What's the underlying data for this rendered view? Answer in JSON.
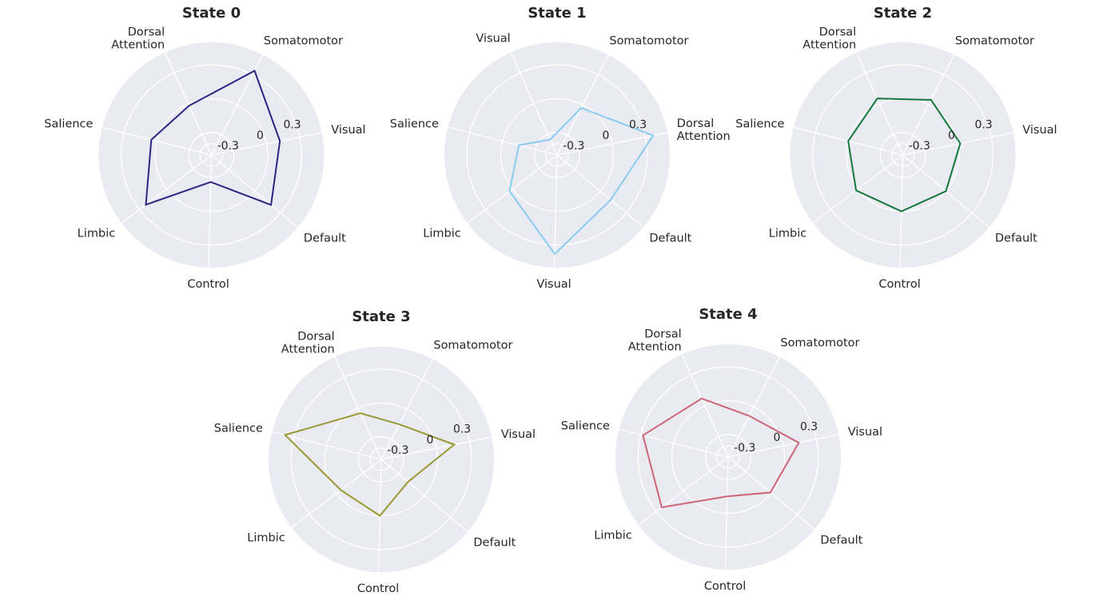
{
  "figure": {
    "background": "#ffffff",
    "axes_background": "#EAEAF2",
    "grid_color": "#ffffff",
    "text_color": "#262626"
  },
  "chart_data": [
    {
      "type": "radar",
      "title": "State 0",
      "categories": [
        "Visual",
        "Somatomotor",
        "Dorsal\nAttention",
        "Salience",
        "Limbic",
        "Control",
        "Default"
      ],
      "values": [
        0.12,
        0.34,
        -0.02,
        0.05,
        0.23,
        -0.26,
        0.19
      ],
      "color": "#2E2482",
      "rlim": [
        -0.5,
        0.5
      ],
      "rticks": [
        -0.3,
        0,
        0.3
      ],
      "rtick_labels": [
        "-0.3",
        "0",
        "0.3"
      ],
      "grid": true
    },
    {
      "type": "radar",
      "title": "State 1",
      "categories": [
        "Dorsal\nAttention",
        "Somatomotor",
        "Visual",
        "Salience",
        "Limbic",
        "Visual",
        "Default"
      ],
      "values": [
        0.37,
        -0.03,
        -0.35,
        -0.15,
        0.03,
        0.38,
        0.12
      ],
      "color": "#89CCEE",
      "rlim": [
        -0.5,
        0.5
      ],
      "rticks": [
        -0.3,
        0,
        0.3
      ],
      "rtick_labels": [
        "-0.3",
        "0",
        "0.3"
      ],
      "grid": true
    },
    {
      "type": "radar",
      "title": "State 2",
      "categories": [
        "Visual",
        "Somatomotor",
        "Dorsal\nAttention",
        "Salience",
        "Limbic",
        "Control",
        "Default"
      ],
      "values": [
        0.02,
        0.05,
        0.05,
        0.0,
        0.02,
        0.0,
        0.0
      ],
      "color": "#13783A",
      "rlim": [
        -0.5,
        0.5
      ],
      "rticks": [
        -0.3,
        0,
        0.3
      ],
      "rtick_labels": [
        "-0.3",
        "0",
        "0.3"
      ],
      "grid": true
    },
    {
      "type": "radar",
      "title": "State 3",
      "categories": [
        "Visual",
        "Somatomotor",
        "Dorsal\nAttention",
        "Salience",
        "Limbic",
        "Control",
        "Default"
      ],
      "values": [
        0.16,
        -0.15,
        -0.05,
        0.38,
        -0.05,
        0.0,
        -0.19
      ],
      "color": "#999933",
      "rlim": [
        -0.5,
        0.5
      ],
      "rticks": [
        -0.3,
        0,
        0.3
      ],
      "rtick_labels": [
        "-0.3",
        "0",
        "0.3"
      ],
      "grid": true
    },
    {
      "type": "radar",
      "title": "State 4",
      "categories": [
        "Visual",
        "Somatomotor",
        "Dorsal\nAttention",
        "Salience",
        "Limbic",
        "Control",
        "Default"
      ],
      "values": [
        0.14,
        -0.09,
        0.07,
        0.28,
        0.24,
        -0.15,
        -0.01
      ],
      "color": "#CC6677",
      "rlim": [
        -0.5,
        0.5
      ],
      "rticks": [
        -0.3,
        0,
        0.3
      ],
      "rtick_labels": [
        "-0.3",
        "0",
        "0.3"
      ],
      "grid": true
    }
  ]
}
